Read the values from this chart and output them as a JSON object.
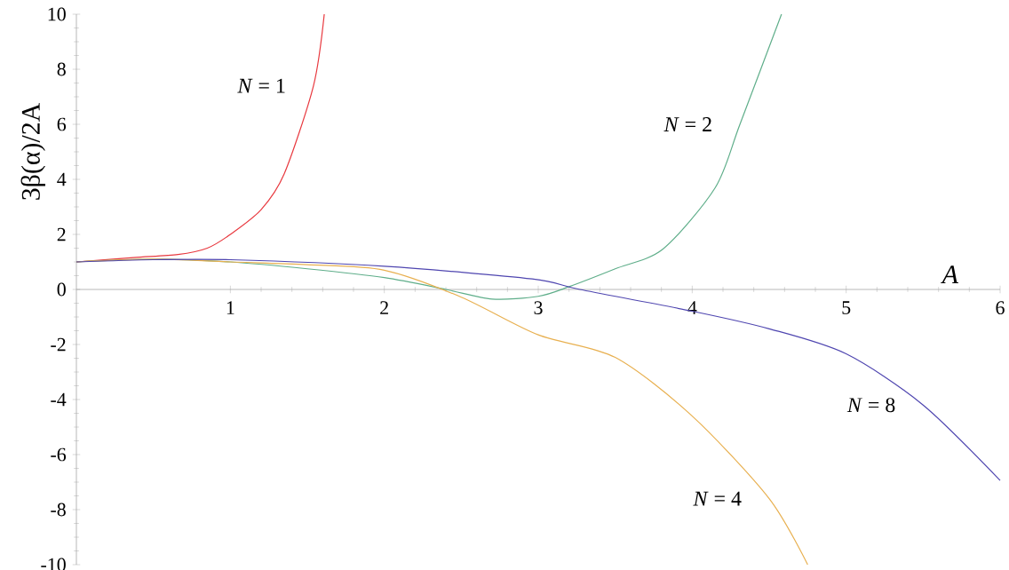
{
  "chart_data": {
    "type": "line",
    "xlabel": "A",
    "ylabel": "3β(α)/2A",
    "xlim": [
      0,
      6
    ],
    "ylim": [
      -10,
      10
    ],
    "xticks": [
      1,
      2,
      3,
      4,
      5,
      6
    ],
    "yticks": [
      -10,
      -8,
      -6,
      -4,
      -2,
      0,
      2,
      4,
      6,
      8,
      10
    ],
    "series": [
      {
        "name": "*N* = 1",
        "color": "#e8393f",
        "x": [
          0,
          0.37,
          0.66,
          0.85,
          1.0,
          1.2,
          1.35,
          1.54,
          1.61
        ],
        "values": [
          1.0,
          1.16,
          1.27,
          1.5,
          2.0,
          2.9,
          4.2,
          7.4,
          10
        ]
      },
      {
        "name": "*N* = 2",
        "color": "#5fae8a",
        "x": [
          0,
          0.5,
          1.0,
          1.5,
          2.0,
          2.4,
          2.7,
          3.0,
          3.2,
          3.5,
          3.81,
          4.15,
          4.31,
          4.58
        ],
        "values": [
          1.0,
          1.1,
          1.0,
          0.75,
          0.43,
          0.0,
          -0.35,
          -0.25,
          0.1,
          0.75,
          1.47,
          3.7,
          6.0,
          10
        ]
      },
      {
        "name": "*N* = 4",
        "color": "#e8b050",
        "x": [
          0,
          0.5,
          1.0,
          1.5,
          2.0,
          2.5,
          3.0,
          3.5,
          4.0,
          4.5,
          4.75
        ],
        "values": [
          1.0,
          1.1,
          1.0,
          0.9,
          0.7,
          -0.28,
          -1.65,
          -2.47,
          -4.6,
          -7.6,
          -10
        ]
      },
      {
        "name": "*N* = 8",
        "color": "#4f46b0",
        "x": [
          0,
          0.5,
          1.0,
          2.0,
          2.96,
          3.27,
          4.0,
          4.5,
          5.0,
          5.5,
          6.0
        ],
        "values": [
          1.0,
          1.08,
          1.08,
          0.84,
          0.38,
          0.0,
          -0.79,
          -1.43,
          -2.34,
          -4.2,
          -6.94
        ]
      }
    ]
  }
}
